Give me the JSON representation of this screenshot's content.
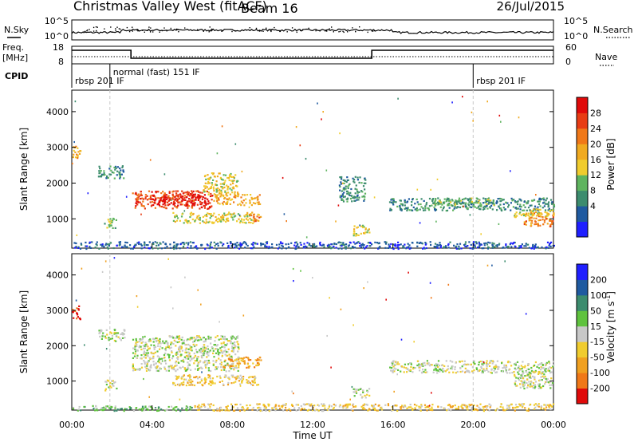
{
  "header": {
    "title": "Christmas Valley West (fitACF)",
    "beam": "Beam 16",
    "date": "26/Jul/2015"
  },
  "labels": {
    "nsky": "N.Sky",
    "freq_line1": "Freq.",
    "freq_line2": "[MHz]",
    "cpid": "CPID",
    "nsearch": "N.Search",
    "nave": "Nave",
    "slant_range": "Slant Range [km]",
    "power": "Power [dB]",
    "velocity": "Velocity [m s",
    "velocity_sup": "-1",
    "velocity_end": "]",
    "time_ut": "Time UT"
  },
  "cpid_segments": [
    {
      "label": "rbsp 201 IF",
      "start": 0.0
    },
    {
      "label": "normal (fast) 151 IF",
      "start": 1.9
    },
    {
      "label": "rbsp 201 IF",
      "start": 20.0
    }
  ],
  "colors": {
    "power": [
      "#1f1fff",
      "#1f5aa0",
      "#3c8c6e",
      "#5fb45f",
      "#f0cc2e",
      "#f0aa20",
      "#f07818",
      "#e83c14",
      "#e00a0a"
    ],
    "velocity": [
      "#1f1fff",
      "#1f5aa0",
      "#3c8c6e",
      "#5fc23e",
      "#c8c8c8",
      "#f0cc2e",
      "#f0a020",
      "#f07818",
      "#e00a0a"
    ]
  },
  "chart_data": [
    {
      "type": "line",
      "name": "noise_panel",
      "y_left_ticks": [
        "10^5",
        "10^0"
      ],
      "y_right_ticks": [
        "10^5",
        "10^0"
      ]
    },
    {
      "type": "line",
      "name": "frequency_panel",
      "y_left_ticks": [
        "18",
        "8"
      ],
      "y_right_ticks": [
        "60",
        "0"
      ],
      "freq_steps": [
        {
          "t0": 0.0,
          "t1": 2.95,
          "level": "high"
        },
        {
          "t0": 2.95,
          "t1": 14.95,
          "level": "low"
        },
        {
          "t0": 14.95,
          "t1": 24.0,
          "level": "high"
        }
      ]
    },
    {
      "type": "heatmap",
      "name": "power",
      "x_ticks": [
        "00:00",
        "04:00",
        "08:00",
        "12:00",
        "16:00",
        "20:00",
        "00:00"
      ],
      "y_ticks": [
        "1000",
        "2000",
        "3000",
        "4000"
      ],
      "ylim": [
        180,
        4600
      ],
      "colorbar_ticks": [
        "4",
        "8",
        "12",
        "16",
        "20",
        "24",
        "28"
      ],
      "regions": [
        {
          "t0": 3.0,
          "t1": 7.0,
          "r0": 1300,
          "r1": 1800,
          "level": 7
        },
        {
          "t0": 4.0,
          "t1": 6.8,
          "r0": 1400,
          "r1": 1700,
          "level": 8
        },
        {
          "t0": 6.5,
          "t1": 8.3,
          "r0": 1700,
          "r1": 2300,
          "level": 4
        },
        {
          "t0": 7.0,
          "t1": 9.4,
          "r0": 1400,
          "r1": 1700,
          "level": 5
        },
        {
          "t0": 5.0,
          "t1": 9.3,
          "r0": 900,
          "r1": 1200,
          "level": 4
        },
        {
          "t0": 8.8,
          "t1": 9.4,
          "r0": 950,
          "r1": 1150,
          "level": 6
        },
        {
          "t0": 0.0,
          "t1": 0.4,
          "r0": 2650,
          "r1": 3050,
          "level": 5
        },
        {
          "t0": 1.3,
          "t1": 2.6,
          "r0": 2150,
          "r1": 2500,
          "level": 2
        },
        {
          "t0": 1.6,
          "t1": 2.2,
          "r0": 750,
          "r1": 1050,
          "level": 3
        },
        {
          "t0": 14.0,
          "t1": 14.8,
          "r0": 550,
          "r1": 850,
          "level": 4
        },
        {
          "t0": 15.8,
          "t1": 24.0,
          "r0": 1250,
          "r1": 1600,
          "level": 2
        },
        {
          "t0": 18.0,
          "t1": 21.0,
          "r0": 1400,
          "r1": 1600,
          "level": 3
        },
        {
          "t0": 22.5,
          "t1": 24.0,
          "r0": 800,
          "r1": 1200,
          "level": 6
        },
        {
          "t0": 22.0,
          "t1": 24.0,
          "r0": 1050,
          "r1": 1300,
          "level": 4
        },
        {
          "t0": 13.3,
          "t1": 14.6,
          "r0": 1500,
          "r1": 2200,
          "level": 2
        },
        {
          "t0": 0.0,
          "t1": 24.0,
          "r0": 180,
          "r1": 380,
          "level": 1
        }
      ]
    },
    {
      "type": "heatmap",
      "name": "velocity",
      "x_ticks": [
        "00:00",
        "04:00",
        "08:00",
        "12:00",
        "16:00",
        "20:00",
        "00:00"
      ],
      "y_ticks": [
        "1000",
        "2000",
        "3000",
        "4000"
      ],
      "ylim": [
        180,
        4600
      ],
      "colorbar_ticks": [
        "200",
        "100",
        "50",
        "15",
        "-15",
        "-50",
        "-100",
        "-200"
      ],
      "regions": [
        {
          "t0": 0.0,
          "t1": 0.4,
          "r0": 2750,
          "r1": 3150,
          "level": 8
        },
        {
          "t0": 1.3,
          "t1": 2.6,
          "r0": 2150,
          "r1": 2500,
          "level": 4
        },
        {
          "t0": 1.6,
          "t1": 2.2,
          "r0": 750,
          "r1": 1050,
          "level": 4
        },
        {
          "t0": 3.0,
          "t1": 8.3,
          "r0": 1300,
          "r1": 2300,
          "level": 4
        },
        {
          "t0": 7.5,
          "t1": 9.4,
          "r0": 1400,
          "r1": 1700,
          "level": 6
        },
        {
          "t0": 5.0,
          "t1": 9.3,
          "r0": 900,
          "r1": 1200,
          "level": 5
        },
        {
          "t0": 14.0,
          "t1": 14.8,
          "r0": 550,
          "r1": 850,
          "level": 4
        },
        {
          "t0": 15.8,
          "t1": 24.0,
          "r0": 1250,
          "r1": 1600,
          "level": 4
        },
        {
          "t0": 22.0,
          "t1": 24.0,
          "r0": 800,
          "r1": 1300,
          "level": 4
        },
        {
          "t0": 6.0,
          "t1": 24.0,
          "r0": 180,
          "r1": 380,
          "level": 5
        },
        {
          "t0": 0.0,
          "t1": 6.0,
          "r0": 180,
          "r1": 330,
          "level": 3
        }
      ]
    }
  ]
}
